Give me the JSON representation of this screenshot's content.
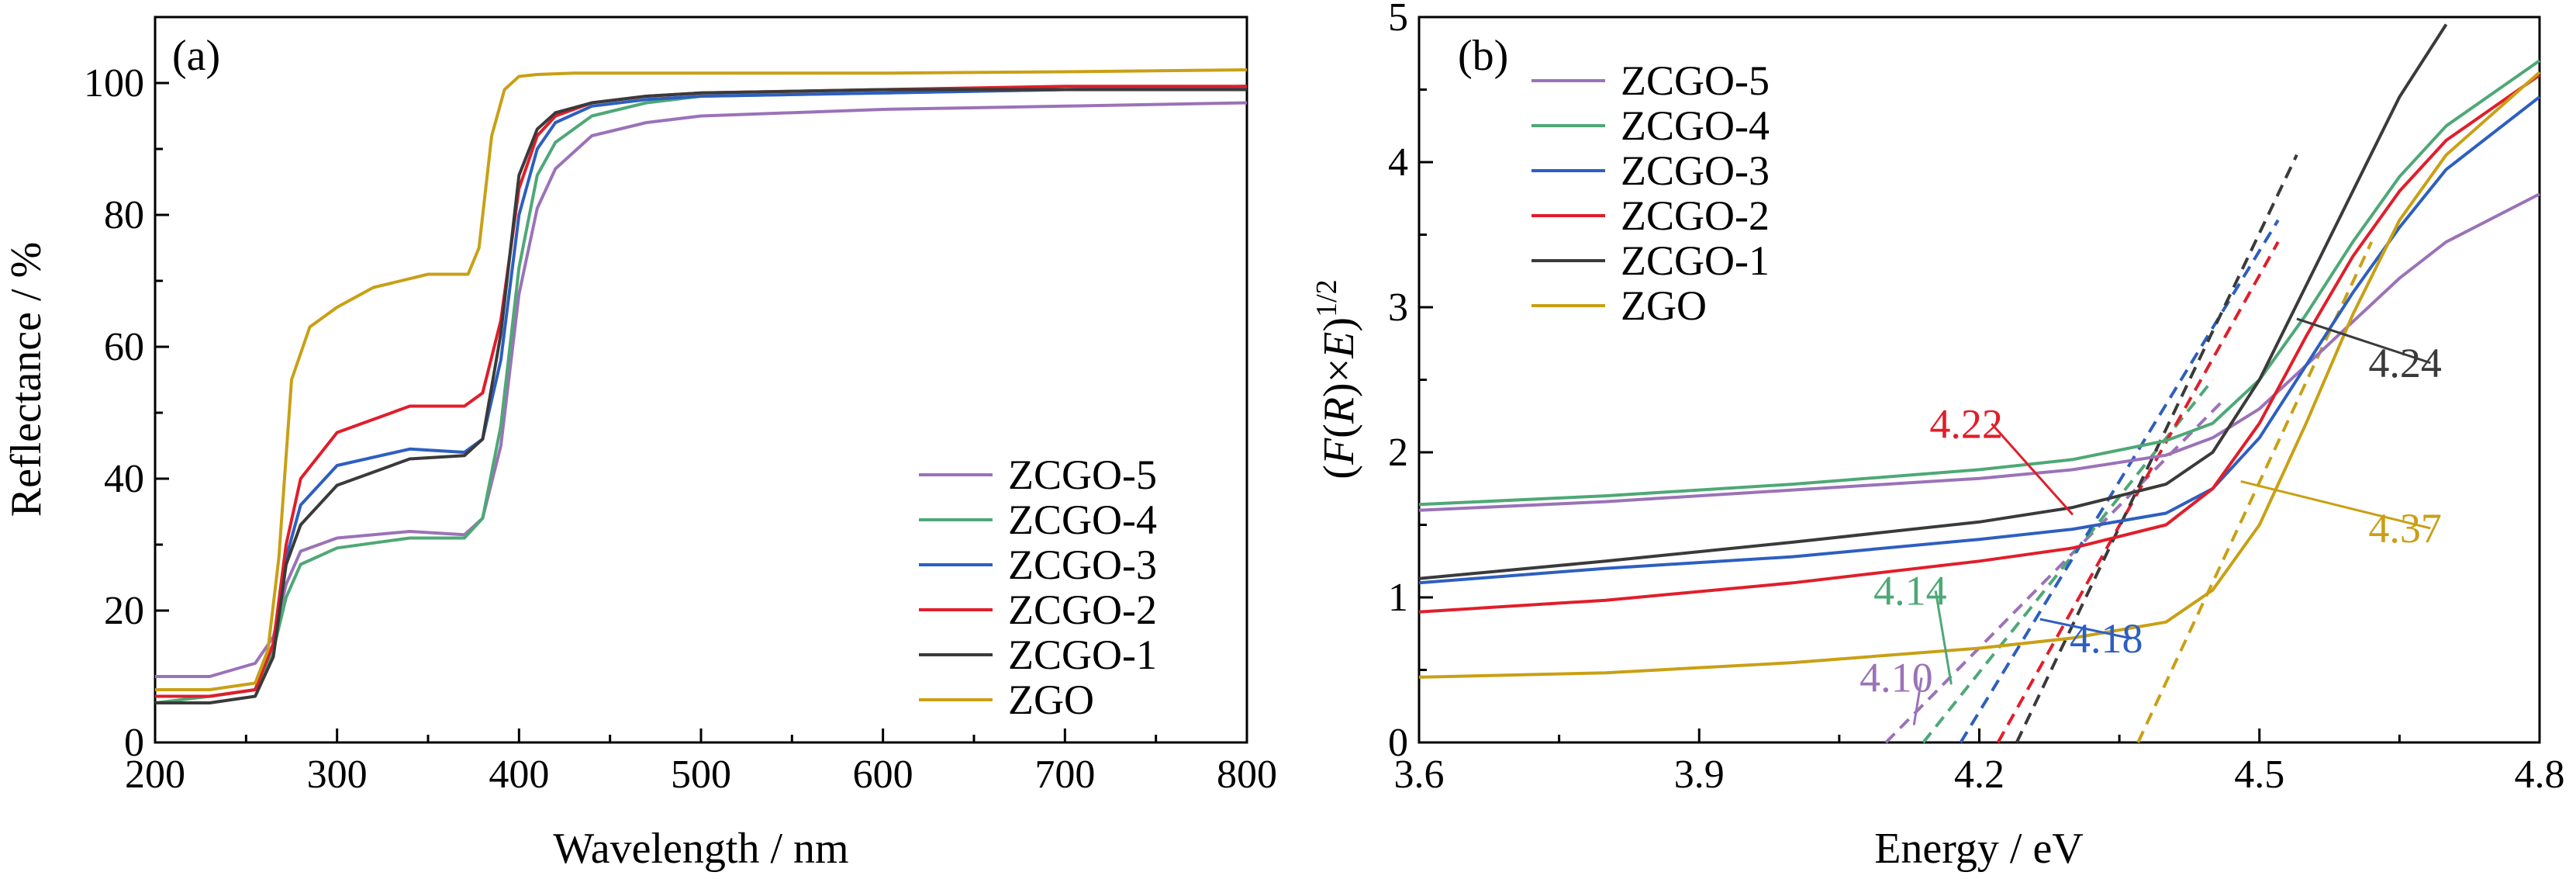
{
  "colors": {
    "ZCGO-5": "#9b72b8",
    "ZCGO-4": "#4ea876",
    "ZCGO-3": "#2d5fbf",
    "ZCGO-2": "#e01e2a",
    "ZCGO-1": "#3a3a3a",
    "ZGO": "#c9a015"
  },
  "chart_data": [
    {
      "type": "line",
      "panel_label": "(a)",
      "xlabel": "Wavelength / nm",
      "ylabel": "Reflectance / %",
      "xlim": [
        200,
        800
      ],
      "ylim": [
        0,
        110
      ],
      "xticks": [
        200,
        300,
        400,
        500,
        600,
        700,
        800
      ],
      "yticks": [
        0,
        20,
        40,
        60,
        80,
        100
      ],
      "legend_position": "lower-right",
      "series": [
        {
          "name": "ZCGO-5",
          "x": [
            200,
            230,
            255,
            265,
            272,
            280,
            300,
            340,
            370,
            380,
            390,
            400,
            410,
            420,
            440,
            470,
            500,
            600,
            700,
            800
          ],
          "y": [
            10,
            10,
            12,
            16,
            24,
            29,
            31,
            32,
            31.5,
            34,
            45,
            68,
            81,
            87,
            92,
            94,
            95,
            96,
            96.5,
            97
          ]
        },
        {
          "name": "ZCGO-4",
          "x": [
            200,
            230,
            255,
            265,
            272,
            280,
            300,
            340,
            370,
            380,
            390,
            400,
            410,
            420,
            440,
            470,
            500,
            600,
            700,
            800
          ],
          "y": [
            6,
            7,
            8,
            14,
            22,
            27,
            29.5,
            31,
            31,
            34,
            48,
            72,
            86,
            91,
            95,
            97,
            98,
            98.5,
            99,
            99.5
          ]
        },
        {
          "name": "ZCGO-3",
          "x": [
            200,
            230,
            255,
            265,
            272,
            280,
            300,
            340,
            370,
            380,
            390,
            400,
            410,
            420,
            440,
            470,
            500,
            600,
            700,
            800
          ],
          "y": [
            7,
            7,
            8,
            15,
            28,
            36,
            42,
            44.5,
            44,
            46,
            58,
            80,
            90,
            94,
            96.5,
            97.5,
            98,
            98.5,
            99,
            99.5
          ]
        },
        {
          "name": "ZCGO-2",
          "x": [
            200,
            230,
            255,
            265,
            272,
            280,
            300,
            340,
            370,
            380,
            390,
            400,
            410,
            420,
            440,
            470,
            500,
            600,
            700,
            800
          ],
          "y": [
            7,
            7,
            8,
            15,
            30,
            40,
            47,
            51,
            51,
            53,
            64,
            84,
            92,
            95,
            97,
            98,
            98.5,
            99,
            99.5,
            99.5
          ]
        },
        {
          "name": "ZCGO-1",
          "x": [
            200,
            230,
            255,
            265,
            272,
            280,
            300,
            340,
            370,
            380,
            390,
            400,
            410,
            420,
            440,
            470,
            500,
            600,
            700,
            800
          ],
          "y": [
            6,
            6,
            7,
            13,
            27,
            33,
            39,
            43,
            43.5,
            46,
            62,
            86,
            93,
            95.5,
            97,
            98,
            98.5,
            99,
            99,
            99
          ]
        },
        {
          "name": "ZGO",
          "x": [
            200,
            230,
            255,
            262,
            268,
            275,
            285,
            300,
            320,
            350,
            372,
            378,
            385,
            392,
            400,
            410,
            430,
            500,
            600,
            700,
            800
          ],
          "y": [
            8,
            8,
            9,
            14,
            28,
            55,
            63,
            66,
            69,
            71,
            71,
            75,
            92,
            99,
            101,
            101.3,
            101.5,
            101.5,
            101.5,
            101.7,
            102
          ]
        }
      ]
    },
    {
      "type": "line",
      "panel_label": "(b)",
      "xlabel": "Energy / eV",
      "ylabel": "(F(R)×E)1/2",
      "xlim": [
        3.6,
        4.8
      ],
      "ylim": [
        0,
        5
      ],
      "xticks": [
        "3.6",
        "3.9",
        "4.2",
        "4.5",
        "4.8"
      ],
      "yticks": [
        "0",
        "1",
        "2",
        "3",
        "4",
        "5"
      ],
      "legend_position": "top-left",
      "series": [
        {
          "name": "ZCGO-5",
          "x": [
            3.6,
            3.8,
            4.0,
            4.2,
            4.3,
            4.4,
            4.45,
            4.5,
            4.55,
            4.6,
            4.65,
            4.7,
            4.8
          ],
          "y": [
            1.6,
            1.66,
            1.74,
            1.82,
            1.88,
            1.98,
            2.1,
            2.3,
            2.6,
            2.9,
            3.2,
            3.45,
            3.78
          ]
        },
        {
          "name": "ZCGO-4",
          "x": [
            3.6,
            3.8,
            4.0,
            4.2,
            4.3,
            4.4,
            4.45,
            4.5,
            4.55,
            4.6,
            4.65,
            4.7,
            4.8
          ],
          "y": [
            1.64,
            1.7,
            1.78,
            1.88,
            1.95,
            2.08,
            2.2,
            2.5,
            2.95,
            3.45,
            3.9,
            4.25,
            4.7
          ]
        },
        {
          "name": "ZCGO-3",
          "x": [
            3.6,
            3.8,
            4.0,
            4.2,
            4.3,
            4.4,
            4.45,
            4.5,
            4.55,
            4.6,
            4.65,
            4.7,
            4.8
          ],
          "y": [
            1.1,
            1.2,
            1.28,
            1.4,
            1.47,
            1.58,
            1.75,
            2.1,
            2.6,
            3.1,
            3.55,
            3.95,
            4.45
          ]
        },
        {
          "name": "ZCGO-2",
          "x": [
            3.6,
            3.8,
            4.0,
            4.2,
            4.3,
            4.4,
            4.45,
            4.5,
            4.55,
            4.6,
            4.65,
            4.7,
            4.8
          ],
          "y": [
            0.9,
            0.98,
            1.1,
            1.25,
            1.34,
            1.5,
            1.75,
            2.2,
            2.8,
            3.35,
            3.8,
            4.15,
            4.6
          ]
        },
        {
          "name": "ZCGO-1",
          "x": [
            3.6,
            3.8,
            4.0,
            4.2,
            4.3,
            4.4,
            4.45,
            4.5,
            4.55,
            4.6,
            4.65,
            4.7
          ],
          "y": [
            1.13,
            1.25,
            1.38,
            1.52,
            1.62,
            1.78,
            2.0,
            2.5,
            3.15,
            3.8,
            4.45,
            4.95
          ]
        },
        {
          "name": "ZGO",
          "x": [
            3.6,
            3.8,
            4.0,
            4.2,
            4.3,
            4.4,
            4.45,
            4.5,
            4.55,
            4.6,
            4.65,
            4.7,
            4.8
          ],
          "y": [
            0.45,
            0.48,
            0.55,
            0.65,
            0.72,
            0.83,
            1.05,
            1.5,
            2.2,
            2.95,
            3.6,
            4.05,
            4.62
          ]
        }
      ],
      "fit_lines": [
        {
          "series": "ZCGO-5",
          "x": [
            4.1,
            4.46
          ],
          "y": [
            0,
            2.35
          ]
        },
        {
          "series": "ZCGO-4",
          "x": [
            4.14,
            4.45
          ],
          "y": [
            0,
            2.5
          ]
        },
        {
          "series": "ZCGO-3",
          "x": [
            4.18,
            4.52
          ],
          "y": [
            0,
            3.6
          ]
        },
        {
          "series": "ZCGO-2",
          "x": [
            4.22,
            4.52
          ],
          "y": [
            0,
            3.45
          ]
        },
        {
          "series": "ZCGO-1",
          "x": [
            4.24,
            4.54
          ],
          "y": [
            0,
            4.05
          ]
        },
        {
          "series": "ZGO",
          "x": [
            4.37,
            4.62
          ],
          "y": [
            0,
            3.45
          ]
        }
      ],
      "annotations": [
        {
          "text": "4.10",
          "series": "ZCGO-5",
          "label_x": 4.105,
          "label_y": 0.35,
          "arrow_to": [
            4.13,
            0.12
          ]
        },
        {
          "text": "4.14",
          "series": "ZCGO-4",
          "label_x": 4.12,
          "label_y": 0.95,
          "arrow_to": [
            4.17,
            0.4
          ]
        },
        {
          "text": "4.18",
          "series": "ZCGO-3",
          "label_x": 4.33,
          "label_y": 0.62,
          "arrow_to": [
            4.265,
            0.85
          ]
        },
        {
          "text": "4.22",
          "series": "ZCGO-2",
          "label_x": 4.18,
          "label_y": 2.1,
          "arrow_to": [
            4.3,
            1.57
          ]
        },
        {
          "text": "4.24",
          "series": "ZCGO-1",
          "label_x": 4.65,
          "label_y": 2.52,
          "arrow_to": [
            4.54,
            2.92
          ]
        },
        {
          "text": "4.37",
          "series": "ZGO",
          "label_x": 4.65,
          "label_y": 1.38,
          "arrow_to": [
            4.48,
            1.8
          ]
        }
      ]
    }
  ]
}
